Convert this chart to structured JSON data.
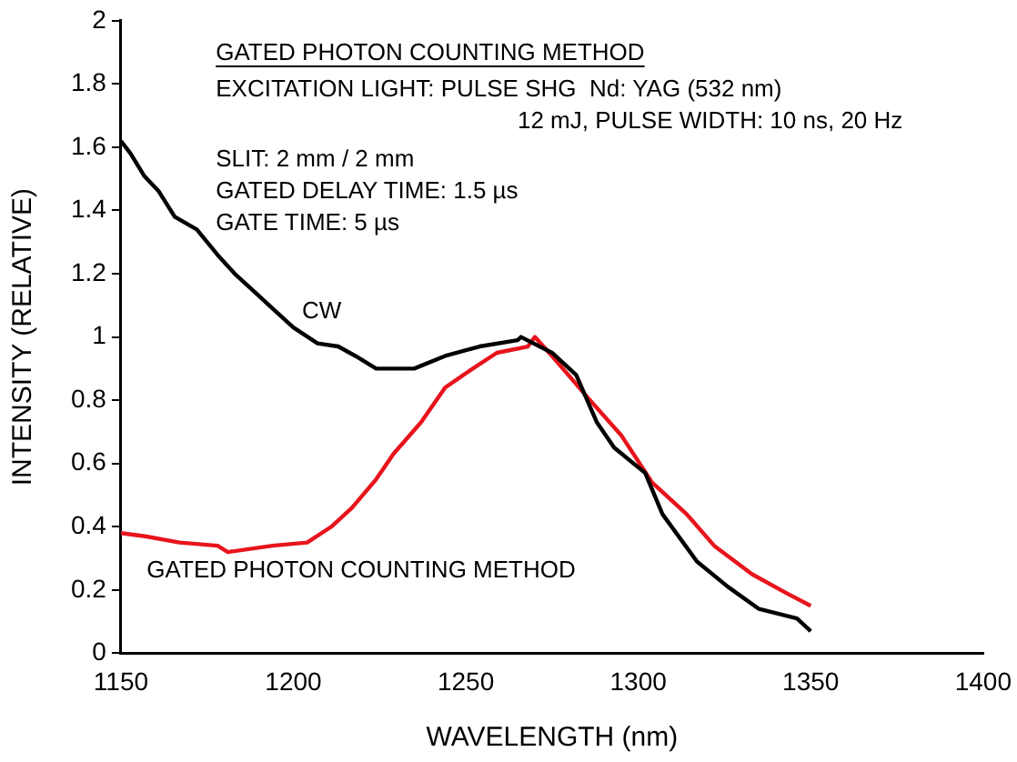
{
  "chart_data": {
    "type": "line",
    "xlabel": "WAVELENGTH (nm)",
    "ylabel": "INTENSITY (RELATIVE)",
    "xlim": [
      1150,
      1400
    ],
    "xticks": [
      1150,
      1200,
      1250,
      1300,
      1350,
      1400
    ],
    "ylim": [
      0,
      2
    ],
    "yticks": [
      0,
      0.2,
      0.4,
      0.6,
      0.8,
      1,
      1.2,
      1.4,
      1.6,
      1.8,
      2
    ],
    "grid": false,
    "legend": false,
    "marker": "none",
    "line_style": "solid",
    "annotations": [
      "GATED PHOTON COUNTING METHOD",
      "EXCITATION LIGHT: PULSE SHG  Nd: YAG (532 nm)",
      "12 mJ, PULSE WIDTH: 10 ns, 20 Hz",
      "SLIT: 2 mm / 2 mm",
      "GATED DELAY TIME: 1.5 µs",
      "GATE TIME: 5 µs"
    ],
    "series": [
      {
        "name": "CW",
        "color": "#000000",
        "x": [
          1150,
          1152.8,
          1156.7,
          1161,
          1165.6,
          1172,
          1178,
          1183,
          1189,
          1194,
          1200,
          1207,
          1213,
          1218,
          1224,
          1235,
          1244,
          1254,
          1265,
          1266,
          1275,
          1282,
          1288,
          1293,
          1302,
          1307,
          1317,
          1326,
          1335,
          1346,
          1350
        ],
        "values": [
          1.62,
          1.58,
          1.51,
          1.46,
          1.38,
          1.34,
          1.26,
          1.2,
          1.14,
          1.09,
          1.03,
          0.98,
          0.97,
          0.94,
          0.9,
          0.9,
          0.94,
          0.97,
          0.99,
          1.0,
          0.95,
          0.88,
          0.73,
          0.65,
          0.57,
          0.44,
          0.29,
          0.21,
          0.14,
          0.11,
          0.07
        ]
      },
      {
        "name": "GATED PHOTON COUNTING METHOD",
        "color": "#e8141c",
        "x": [
          1150,
          1157,
          1167,
          1178,
          1181,
          1194,
          1204,
          1211,
          1217,
          1224,
          1229,
          1237,
          1244,
          1252,
          1259,
          1268,
          1270,
          1275,
          1286,
          1295,
          1304,
          1314,
          1322,
          1333,
          1343,
          1350
        ],
        "values": [
          0.38,
          0.37,
          0.35,
          0.34,
          0.32,
          0.34,
          0.35,
          0.4,
          0.46,
          0.55,
          0.63,
          0.73,
          0.84,
          0.9,
          0.95,
          0.97,
          1.0,
          0.94,
          0.8,
          0.69,
          0.54,
          0.44,
          0.34,
          0.25,
          0.19,
          0.15
        ]
      }
    ]
  }
}
